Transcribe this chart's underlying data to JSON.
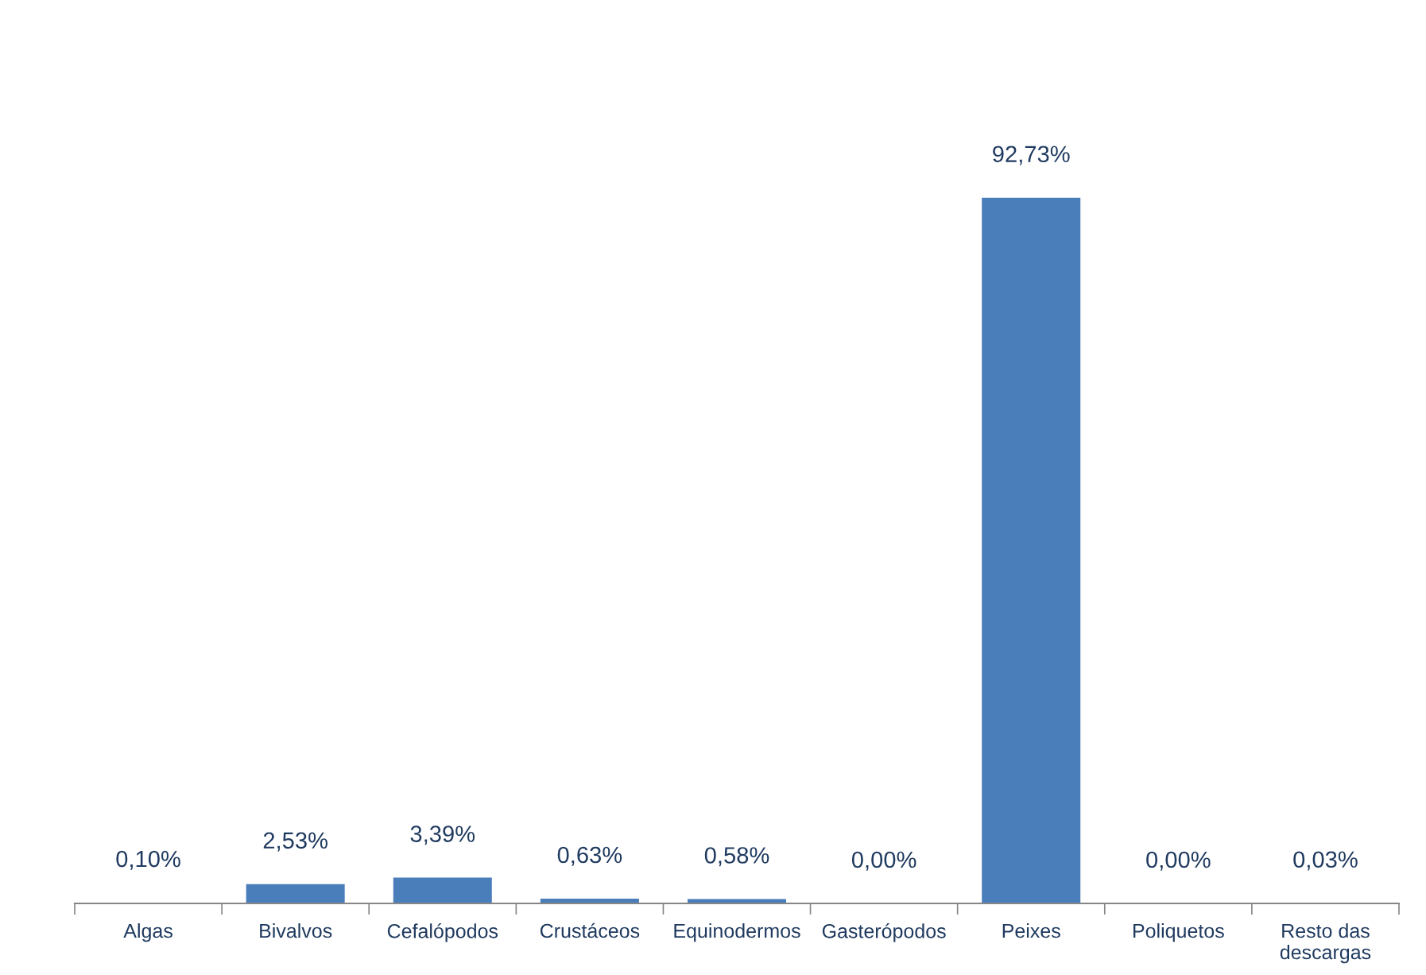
{
  "chart_data": {
    "type": "bar",
    "categories": [
      "Algas",
      "Bivalvos",
      "Cefalópodos",
      "Crustáceos",
      "Equinodermos",
      "Gasterópodos",
      "Peixes",
      "Poliquetos",
      "Resto das\ndescargas"
    ],
    "values": [
      0.1,
      2.53,
      3.39,
      0.63,
      0.58,
      0.0,
      92.73,
      0.0,
      0.03
    ],
    "value_labels": [
      "0,10%",
      "2,53%",
      "3,39%",
      "0,63%",
      "0,58%",
      "0,00%",
      "92,73%",
      "0,00%",
      "0,03%"
    ],
    "color": "#4a7ebb"
  }
}
